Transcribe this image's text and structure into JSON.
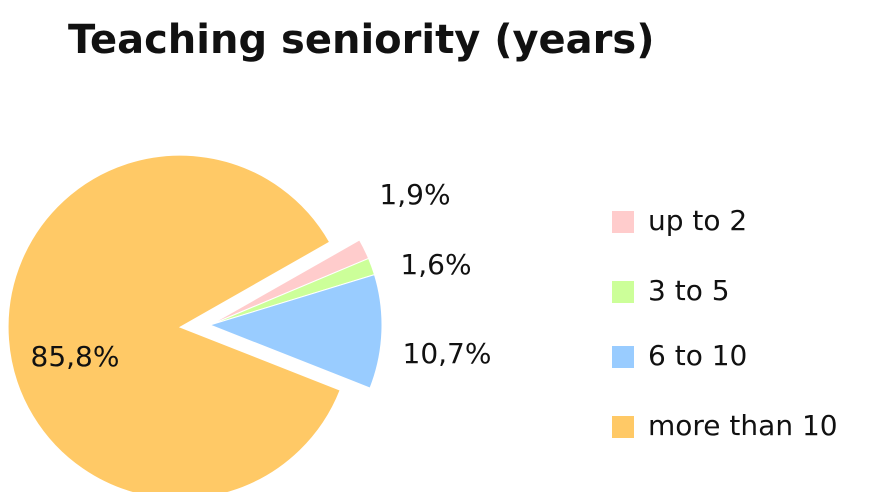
{
  "chart_data": {
    "type": "pie",
    "title": "Teaching seniority (years)",
    "categories": [
      "up to 2",
      "3 to 5",
      "6 to 10",
      "more than 10"
    ],
    "values": [
      1.9,
      1.6,
      10.7,
      85.8
    ],
    "value_labels": [
      "1,9%",
      "1,6%",
      "10,7%",
      "85,8%"
    ],
    "colors": [
      "#ffcccc",
      "#ccff99",
      "#99ccff",
      "#ffc966"
    ],
    "legend": "right"
  }
}
